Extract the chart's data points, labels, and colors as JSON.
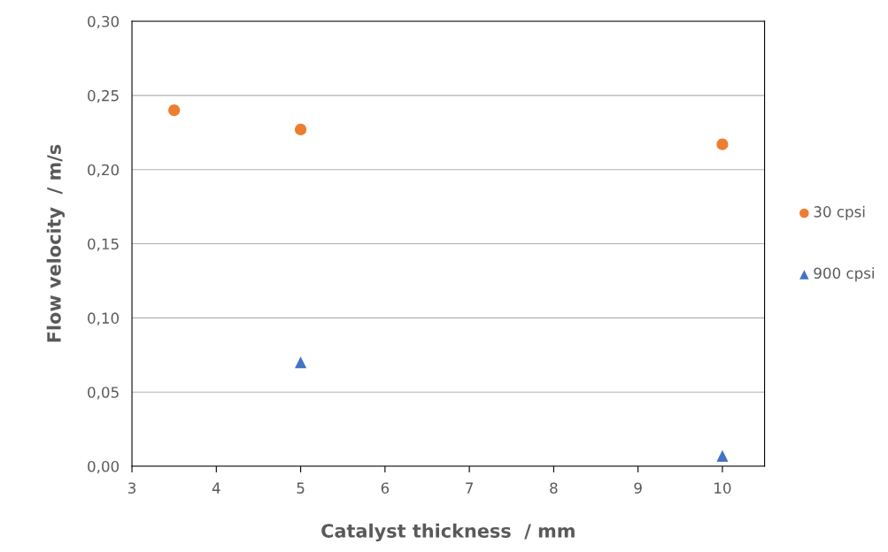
{
  "chart_data": {
    "type": "scatter",
    "xlabel": "Catalyst thickness  / mm",
    "ylabel": "Flow velocity  / m/s",
    "series": [
      {
        "name": "30 cpsi",
        "color": "#ed7d31",
        "marker": "circle",
        "x": [
          3.5,
          5,
          10
        ],
        "values": [
          0.24,
          0.227,
          0.217
        ]
      },
      {
        "name": "900 cpsi",
        "color": "#4472c4",
        "marker": "triangle",
        "x": [
          5,
          10
        ],
        "values": [
          0.07,
          0.007
        ]
      }
    ],
    "xlim": [
      3,
      10.5
    ],
    "xticks": [
      3,
      4,
      5,
      6,
      7,
      8,
      9,
      10
    ],
    "ylim": [
      0,
      0.3
    ],
    "yticks": [
      {
        "value": 0,
        "label": "0,00"
      },
      {
        "value": 0.05,
        "label": "0,05"
      },
      {
        "value": 0.1,
        "label": "0,10"
      },
      {
        "value": 0.15,
        "label": "0,15"
      },
      {
        "value": 0.2,
        "label": "0,20"
      },
      {
        "value": 0.25,
        "label": "0,25"
      },
      {
        "value": 0.3,
        "label": "0,30"
      }
    ],
    "grid": "y",
    "legend": "right"
  }
}
